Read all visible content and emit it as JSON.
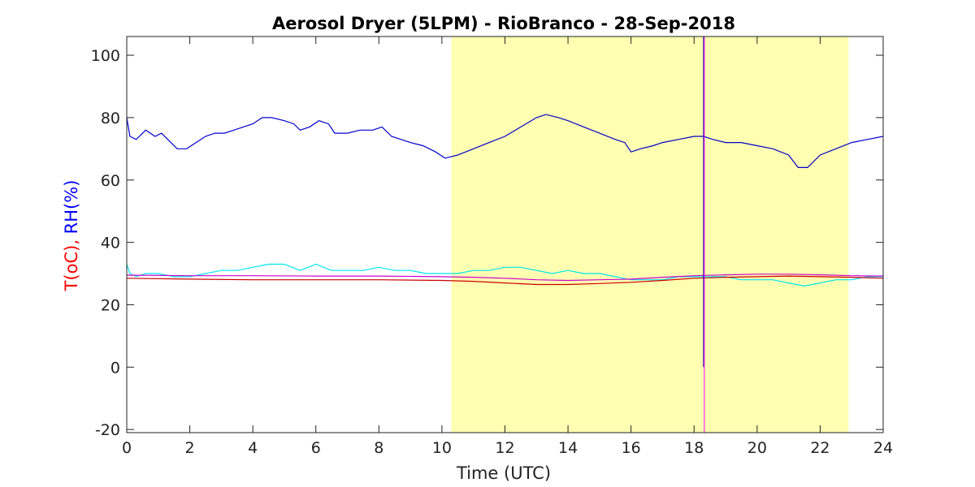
{
  "chart_data": {
    "type": "line",
    "title": "Aerosol Dryer (5LPM) - RioBranco - 28-Sep-2018",
    "xlabel": "Time (UTC)",
    "ylabel_parts": [
      {
        "text": "T(oC)",
        "color": "#ff0000"
      },
      {
        "text": ", ",
        "color": "#ff0000"
      },
      {
        "text": "RH(%)",
        "color": "#0000ff"
      }
    ],
    "xlim": [
      0,
      24
    ],
    "ylim": [
      -21,
      106
    ],
    "xticks": [
      0,
      2,
      4,
      6,
      8,
      10,
      12,
      14,
      16,
      18,
      20,
      22,
      24
    ],
    "yticks": [
      -20,
      0,
      20,
      40,
      60,
      80,
      100
    ],
    "grid": false,
    "shaded_region": {
      "x": [
        10.3,
        22.9
      ],
      "color": "#ffffb2"
    },
    "vertical_marker": {
      "x": 18.3,
      "colors": [
        "#0000a0",
        "#ff00ff"
      ]
    },
    "series": [
      {
        "color": "#0000cc",
        "x": [
          0,
          0.1,
          0.3,
          0.6,
          0.9,
          1.1,
          1.4,
          1.6,
          1.9,
          2.2,
          2.5,
          2.8,
          3.1,
          3.4,
          3.7,
          4.0,
          4.3,
          4.6,
          5.0,
          5.3,
          5.5,
          5.8,
          6.1,
          6.4,
          6.6,
          7.0,
          7.4,
          7.8,
          8.1,
          8.4,
          8.7,
          9.0,
          9.4,
          9.8,
          10.1,
          10.5,
          11.0,
          11.5,
          12.0,
          12.5,
          13.0,
          13.3,
          13.7,
          14.0,
          14.5,
          15.0,
          15.5,
          15.8,
          16.0,
          16.3,
          16.7,
          17.0,
          17.5,
          18.0,
          18.3,
          18.6,
          19.0,
          19.5,
          20.0,
          20.5,
          21.0,
          21.3,
          21.6,
          22.0,
          22.5,
          23.0,
          23.5,
          24.0
        ],
        "y": [
          80,
          74,
          73,
          76,
          74,
          75,
          72,
          70,
          70,
          72,
          74,
          75,
          75,
          76,
          77,
          78,
          80,
          80,
          79,
          78,
          76,
          77,
          79,
          78,
          75,
          75,
          76,
          76,
          77,
          74,
          73,
          72,
          71,
          69,
          67,
          68,
          70,
          72,
          74,
          77,
          80,
          81,
          80,
          79,
          77,
          75,
          73,
          72,
          69,
          70,
          71,
          72,
          73,
          74,
          74,
          73,
          72,
          72,
          71,
          70,
          68,
          64,
          64,
          68,
          70,
          72,
          73,
          74
        ]
      },
      {
        "color": "#00e5ee",
        "x": [
          0,
          0.1,
          0.3,
          0.6,
          1.0,
          1.5,
          2.0,
          2.5,
          3.0,
          3.5,
          4.0,
          4.5,
          5.0,
          5.5,
          6.0,
          6.5,
          7.0,
          7.5,
          8.0,
          8.5,
          9.0,
          9.5,
          10.0,
          10.5,
          11.0,
          11.5,
          12.0,
          12.5,
          13.0,
          13.5,
          14.0,
          14.5,
          15.0,
          15.5,
          16.0,
          16.5,
          17.0,
          17.5,
          18.0,
          18.3,
          18.6,
          19.0,
          19.5,
          20.0,
          20.5,
          21.0,
          21.5,
          22.0,
          22.5,
          23.0,
          23.5,
          24.0
        ],
        "y": [
          33,
          30,
          29,
          30,
          30,
          29,
          29,
          30,
          31,
          31,
          32,
          33,
          33,
          31,
          33,
          31,
          31,
          31,
          32,
          31,
          31,
          30,
          30,
          30,
          31,
          31,
          32,
          32,
          31,
          30,
          31,
          30,
          30,
          29,
          28,
          28,
          28,
          29,
          29,
          29,
          29,
          29,
          28,
          28,
          28,
          27,
          26,
          27,
          28,
          28,
          29,
          29
        ]
      },
      {
        "color": "#cc0000",
        "x": [
          0,
          2,
          4,
          6,
          8,
          10,
          11,
          12,
          13,
          14,
          15,
          16,
          17,
          18,
          19,
          20,
          21,
          22,
          23,
          24
        ],
        "y": [
          28.5,
          28.2,
          28.0,
          28.0,
          28.0,
          27.8,
          27.5,
          27.0,
          26.5,
          26.5,
          26.8,
          27.2,
          27.8,
          28.5,
          28.8,
          29.0,
          29.2,
          29.0,
          28.8,
          28.5
        ]
      },
      {
        "color": "#cc00cc",
        "x": [
          0,
          2,
          4,
          6,
          8,
          10,
          11,
          12,
          13,
          14,
          15,
          16,
          17,
          18,
          19,
          20,
          21,
          22,
          23,
          24
        ],
        "y": [
          29.5,
          29.3,
          29.3,
          29.2,
          29.2,
          29.0,
          28.8,
          28.5,
          28.0,
          27.8,
          28.0,
          28.2,
          28.8,
          29.3,
          29.6,
          29.8,
          29.8,
          29.6,
          29.3,
          29.2
        ]
      }
    ]
  }
}
